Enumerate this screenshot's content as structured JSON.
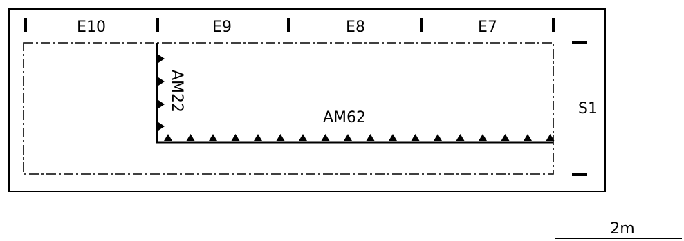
{
  "grid": {
    "columns": [
      "E10",
      "E9",
      "E8",
      "E7"
    ],
    "row_label": "S1"
  },
  "members": {
    "vertical": "AM22",
    "horizontal": "AM62"
  },
  "scale": {
    "label": "2m"
  }
}
